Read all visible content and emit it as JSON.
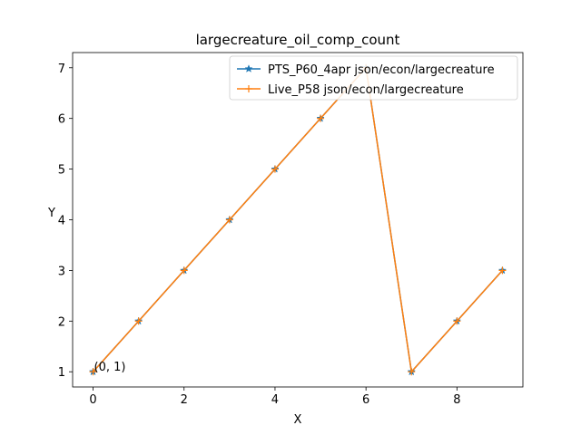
{
  "chart_data": {
    "type": "line",
    "title": "largecreature_oil_comp_count",
    "xlabel": "X",
    "ylabel": "Y",
    "xlim": [
      -0.45,
      9.45
    ],
    "ylim": [
      0.7,
      7.3
    ],
    "xticks": [
      0,
      2,
      4,
      6,
      8
    ],
    "yticks": [
      1,
      2,
      3,
      4,
      5,
      6,
      7
    ],
    "grid": false,
    "legend_position": "top-right",
    "x": [
      0,
      1,
      2,
      3,
      4,
      5,
      6,
      7,
      8,
      9
    ],
    "series": [
      {
        "name": "PTS_P60_4apr json/econ/largecreature",
        "values": [
          1,
          2,
          3,
          4,
          5,
          6,
          7,
          1,
          2,
          3
        ],
        "color": "#1f77b4",
        "marker": "star"
      },
      {
        "name": "Live_P58 json/econ/largecreature",
        "values": [
          1,
          2,
          3,
          4,
          5,
          6,
          7,
          1,
          2,
          3
        ],
        "color": "#ff7f0e",
        "marker": "plus"
      }
    ],
    "annotations": [
      {
        "text": "(0, 1)",
        "x": 0,
        "y": 1
      }
    ]
  }
}
